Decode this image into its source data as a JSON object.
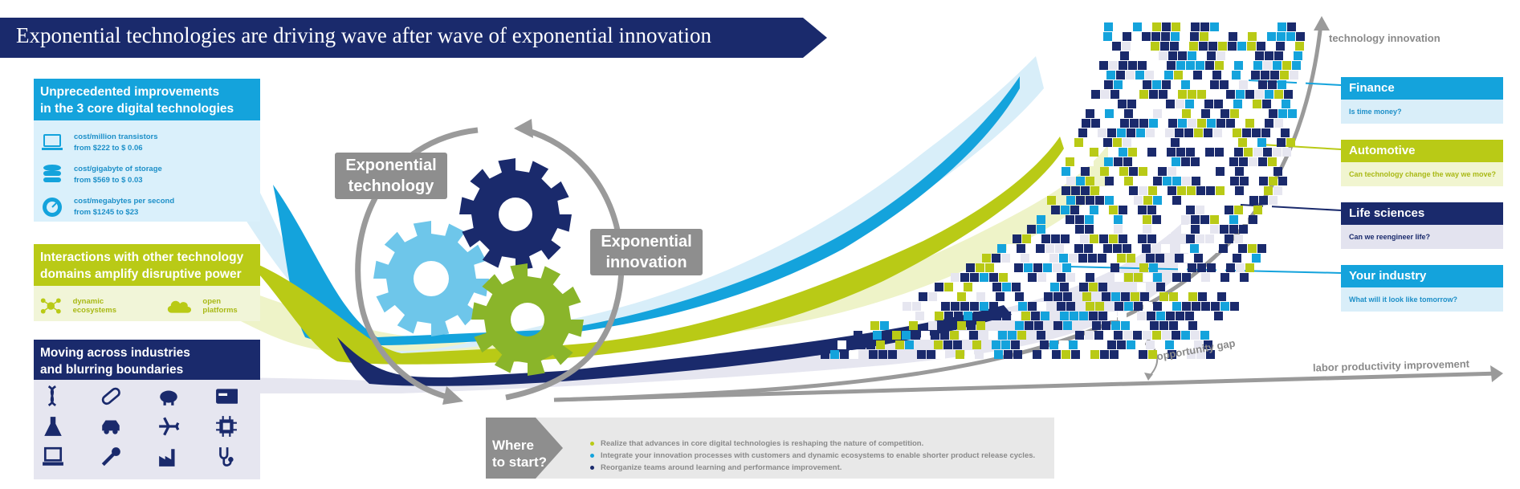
{
  "title": "Exponential technologies are driving wave after wave of exponential innovation",
  "colors": {
    "navy": "#1a2a6c",
    "cyan": "#14a3dc",
    "lime": "#b9ca16",
    "gear_light": "#6ec6ea",
    "gear_green": "#8ab52a",
    "gray": "#8e8e8e"
  },
  "left": {
    "core": {
      "heading_line1": "Unprecedented improvements",
      "heading_line2": "in the 3 core digital technologies",
      "stats": [
        {
          "icon": "laptop-icon",
          "line1": "cost/million transistors",
          "line2": "from $222 to $ 0.06"
        },
        {
          "icon": "database-icon",
          "line1": "cost/gigabyte of storage",
          "line2": "from $569 to $ 0.03"
        },
        {
          "icon": "speedometer-icon",
          "line1": "cost/megabytes per second",
          "line2": "from $1245 to $23"
        }
      ]
    },
    "interactions": {
      "heading_line1": "Interactions with other technology",
      "heading_line2": "domains amplify disruptive power",
      "items": [
        {
          "icon": "network-icon",
          "label": "dynamic ecosystems"
        },
        {
          "icon": "cloud-icon",
          "label": "open platforms"
        }
      ]
    },
    "industries": {
      "heading_line1": "Moving across industries",
      "heading_line2": "and blurring boundaries",
      "icons": [
        "dna-icon",
        "pill-icon",
        "piggy-bank-icon",
        "credit-card-icon",
        "flask-icon",
        "car-icon",
        "airplane-icon",
        "chip-icon",
        "laptop-icon",
        "wrench-icon",
        "factory-icon",
        "stethoscope-icon"
      ]
    }
  },
  "center": {
    "tech_label_line1": "Exponential",
    "tech_label_line2": "technology",
    "innov_label_line1": "Exponential",
    "innov_label_line2": "innovation"
  },
  "axes": {
    "y_label": "technology innovation",
    "x_label": "labor productivity improvement",
    "gap_label": "opportunity gap"
  },
  "industries_right": [
    {
      "name": "Finance",
      "question": "Is time money?",
      "color": "#14a3dc",
      "bg": "#d9eef9",
      "qcolor": "#1c8fc8"
    },
    {
      "name": "Automotive",
      "question": "Can technology change the way we move?",
      "color": "#b9ca16",
      "bg": "#f1f5d0",
      "qcolor": "#a9b915"
    },
    {
      "name": "Life sciences",
      "question": "Can we reengineer life?",
      "color": "#1a2a6c",
      "bg": "#e3e3ef",
      "qcolor": "#1a2a6c"
    },
    {
      "name": "Your industry",
      "question": "What will it look like tomorrow?",
      "color": "#14a3dc",
      "bg": "#d9eef9",
      "qcolor": "#1c8fc8"
    }
  ],
  "where": {
    "label_line1": "Where",
    "label_line2": "to start?",
    "items": [
      {
        "color": "#b9ca16",
        "text": "Realize that advances in core digital technologies is reshaping the nature of competition."
      },
      {
        "color": "#14a3dc",
        "text": "Integrate your innovation processes with customers and dynamic ecosystems to enable shorter product release cycles."
      },
      {
        "color": "#1a2a6c",
        "text": "Reorganize teams around learning and performance improvement."
      }
    ]
  }
}
